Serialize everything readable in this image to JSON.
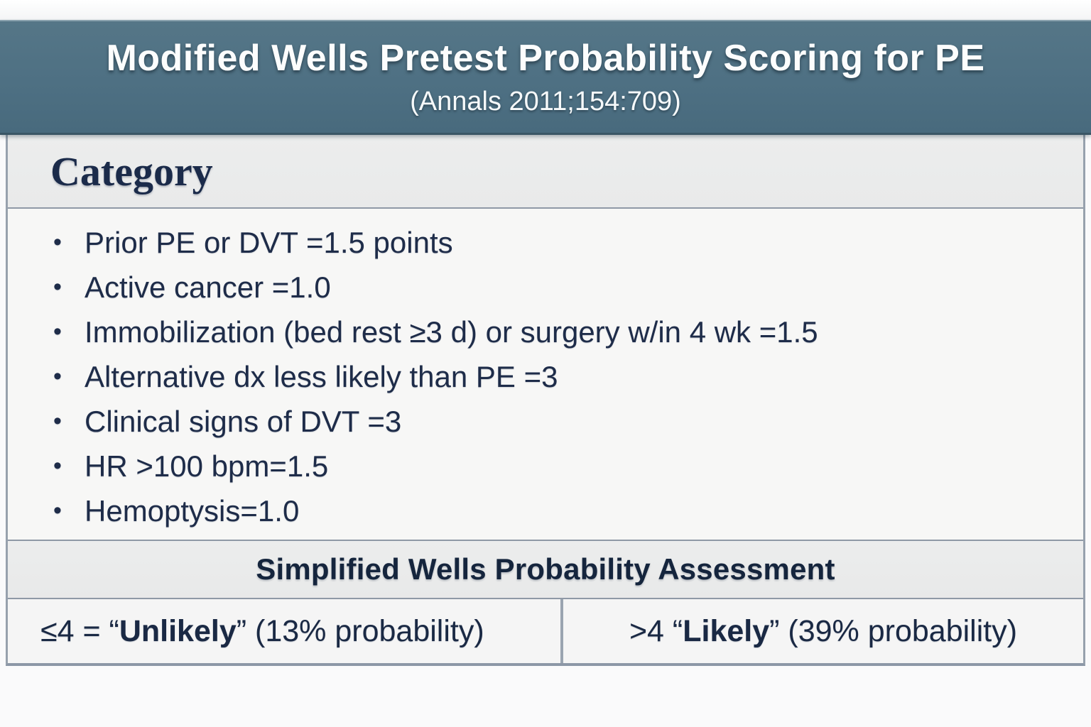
{
  "banner": {
    "title": "Modified Wells Pretest Probability Scoring for PE",
    "subtitle": "(Annals 2011;154:709)",
    "background_color": "#4e7083",
    "text_color": "#fcfdfd"
  },
  "table": {
    "category_header": "Category",
    "bullet_glyph": "•",
    "items": [
      "Prior PE or DVT =1.5 points",
      "Active cancer =1.0",
      "Immobilization (bed rest ≥3 d) or surgery w/in 4 wk =1.5",
      "Alternative dx less likely than PE =3",
      "Clinical signs of DVT =3",
      "HR >100 bpm=1.5",
      "Hemoptysis=1.0"
    ],
    "text_color": "#1e2c49",
    "header_bg": "#ebeceb",
    "body_bg": "#f7f7f6",
    "border_color": "#97a1ad"
  },
  "assessment": {
    "header": "Simplified Wells Probability Assessment",
    "cells": [
      {
        "prefix": "≤4 = “",
        "bold": "Unlikely",
        "suffix": "” (13% probability)"
      },
      {
        "prefix": ">4 “",
        "bold": "Likely",
        "suffix": "” (39% probability)"
      }
    ]
  }
}
